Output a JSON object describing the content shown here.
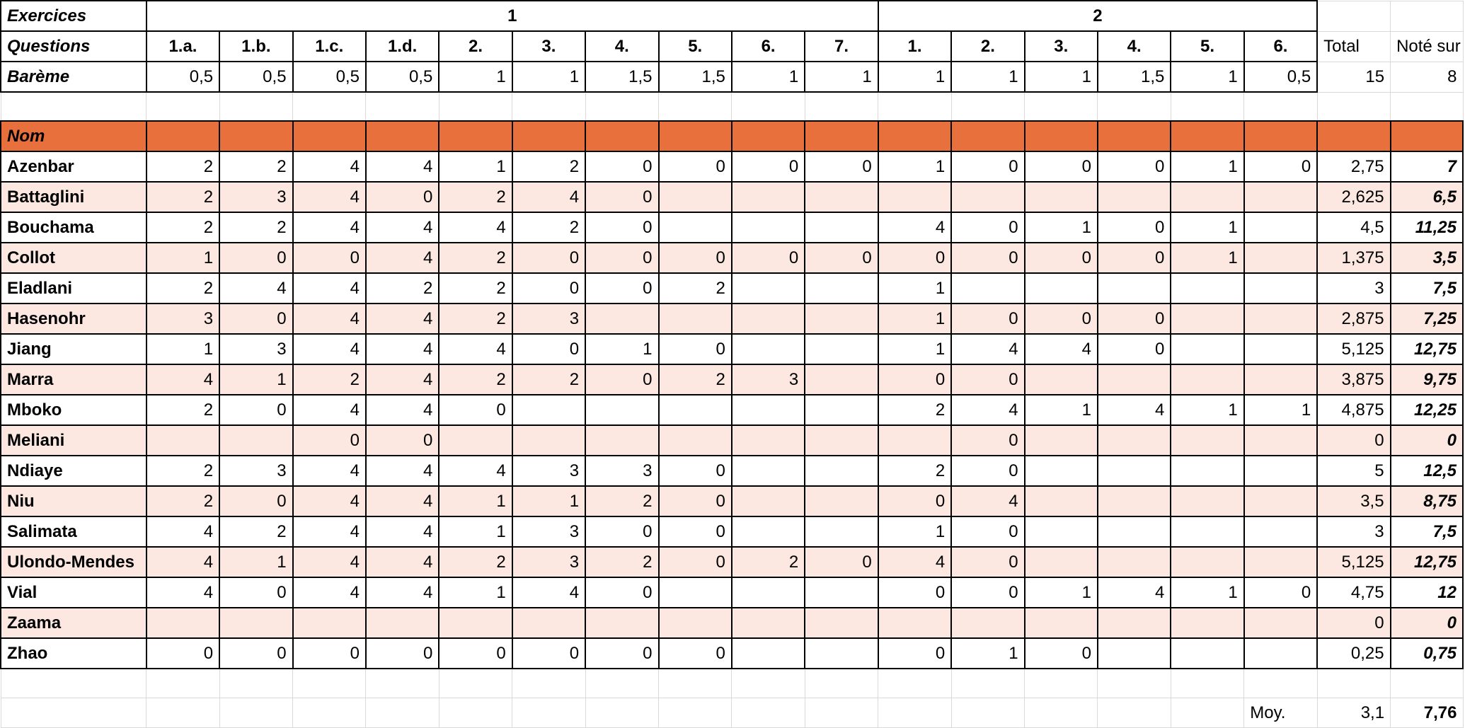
{
  "header": {
    "exercices_label": "Exercices",
    "questions_label": "Questions",
    "bareme_label": "Barème",
    "exercise_groups": [
      {
        "label": "1",
        "span": 10
      },
      {
        "label": "2",
        "span": 6
      }
    ],
    "questions": [
      "1.a.",
      "1.b.",
      "1.c.",
      "1.d.",
      "2.",
      "3.",
      "4.",
      "5.",
      "6.",
      "7.",
      "1.",
      "2.",
      "3.",
      "4.",
      "5.",
      "6."
    ],
    "total_label": "Total",
    "note_sur_label": "Noté sur",
    "bareme": [
      "0,5",
      "0,5",
      "0,5",
      "0,5",
      "1",
      "1",
      "1,5",
      "1,5",
      "1",
      "1",
      "1",
      "1",
      "1",
      "1,5",
      "1",
      "0,5"
    ],
    "bareme_total": "15",
    "note_sur": "8"
  },
  "nom_label": "Nom",
  "students": [
    {
      "name": "Azenbar",
      "scores": [
        "2",
        "2",
        "4",
        "4",
        "1",
        "2",
        "0",
        "0",
        "0",
        "0",
        "1",
        "0",
        "0",
        "0",
        "1",
        "0"
      ],
      "total": "2,75",
      "note": "7"
    },
    {
      "name": "Battaglini",
      "scores": [
        "2",
        "3",
        "4",
        "0",
        "2",
        "4",
        "0",
        "",
        "",
        "",
        "",
        "",
        "",
        "",
        "",
        ""
      ],
      "total": "2,625",
      "note": "6,5"
    },
    {
      "name": "Bouchama",
      "scores": [
        "2",
        "2",
        "4",
        "4",
        "4",
        "2",
        "0",
        "",
        "",
        "",
        "4",
        "0",
        "1",
        "0",
        "1",
        ""
      ],
      "total": "4,5",
      "note": "11,25"
    },
    {
      "name": "Collot",
      "scores": [
        "1",
        "0",
        "0",
        "4",
        "2",
        "0",
        "0",
        "0",
        "0",
        "0",
        "0",
        "0",
        "0",
        "0",
        "1",
        ""
      ],
      "total": "1,375",
      "note": "3,5"
    },
    {
      "name": "Eladlani",
      "scores": [
        "2",
        "4",
        "4",
        "2",
        "2",
        "0",
        "0",
        "2",
        "",
        "",
        "1",
        "",
        "",
        "",
        "",
        ""
      ],
      "total": "3",
      "note": "7,5"
    },
    {
      "name": "Hasenohr",
      "scores": [
        "3",
        "0",
        "4",
        "4",
        "2",
        "3",
        "",
        "",
        "",
        "",
        "1",
        "0",
        "0",
        "0",
        "",
        ""
      ],
      "total": "2,875",
      "note": "7,25"
    },
    {
      "name": "Jiang",
      "scores": [
        "1",
        "3",
        "4",
        "4",
        "4",
        "0",
        "1",
        "0",
        "",
        "",
        "1",
        "4",
        "4",
        "0",
        "",
        ""
      ],
      "total": "5,125",
      "note": "12,75"
    },
    {
      "name": "Marra",
      "scores": [
        "4",
        "1",
        "2",
        "4",
        "2",
        "2",
        "0",
        "2",
        "3",
        "",
        "0",
        "0",
        "",
        "",
        "",
        ""
      ],
      "total": "3,875",
      "note": "9,75"
    },
    {
      "name": "Mboko",
      "scores": [
        "2",
        "0",
        "4",
        "4",
        "0",
        "",
        "",
        "",
        "",
        "",
        "2",
        "4",
        "1",
        "4",
        "1",
        "1"
      ],
      "total": "4,875",
      "note": "12,25"
    },
    {
      "name": "Meliani",
      "scores": [
        "",
        "",
        "0",
        "0",
        "",
        "",
        "",
        "",
        "",
        "",
        "",
        "0",
        "",
        "",
        "",
        ""
      ],
      "total": "0",
      "note": "0"
    },
    {
      "name": "Ndiaye",
      "scores": [
        "2",
        "3",
        "4",
        "4",
        "4",
        "3",
        "3",
        "0",
        "",
        "",
        "2",
        "0",
        "",
        "",
        "",
        ""
      ],
      "total": "5",
      "note": "12,5"
    },
    {
      "name": "Niu",
      "scores": [
        "2",
        "0",
        "4",
        "4",
        "1",
        "1",
        "2",
        "0",
        "",
        "",
        "0",
        "4",
        "",
        "",
        "",
        ""
      ],
      "total": "3,5",
      "note": "8,75"
    },
    {
      "name": "Salimata",
      "scores": [
        "4",
        "2",
        "4",
        "4",
        "1",
        "3",
        "0",
        "0",
        "",
        "",
        "1",
        "0",
        "",
        "",
        "",
        ""
      ],
      "total": "3",
      "note": "7,5"
    },
    {
      "name": "Ulondo-Mendes",
      "scores": [
        "4",
        "1",
        "4",
        "4",
        "2",
        "3",
        "2",
        "0",
        "2",
        "0",
        "4",
        "0",
        "",
        "",
        "",
        ""
      ],
      "total": "5,125",
      "note": "12,75"
    },
    {
      "name": "Vial",
      "scores": [
        "4",
        "0",
        "4",
        "4",
        "1",
        "4",
        "0",
        "",
        "",
        "",
        "0",
        "0",
        "1",
        "4",
        "1",
        "0"
      ],
      "total": "4,75",
      "note": "12"
    },
    {
      "name": "Zaama",
      "scores": [
        "",
        "",
        "",
        "",
        "",
        "",
        "",
        "",
        "",
        "",
        "",
        "",
        "",
        "",
        "",
        ""
      ],
      "total": "0",
      "note": "0"
    },
    {
      "name": "Zhao",
      "scores": [
        "0",
        "0",
        "0",
        "0",
        "0",
        "0",
        "0",
        "0",
        "",
        "",
        "0",
        "1",
        "0",
        "",
        "",
        ""
      ],
      "total": "0,25",
      "note": "0,75"
    }
  ],
  "footer": {
    "moy_label": "Moy.",
    "moy_total": "3,1",
    "moy_note": "7,76"
  },
  "colors": {
    "header_band": "#e8703d",
    "stripe": "#fce8e0",
    "grid": "#d9d9d9",
    "border": "#000000"
  }
}
